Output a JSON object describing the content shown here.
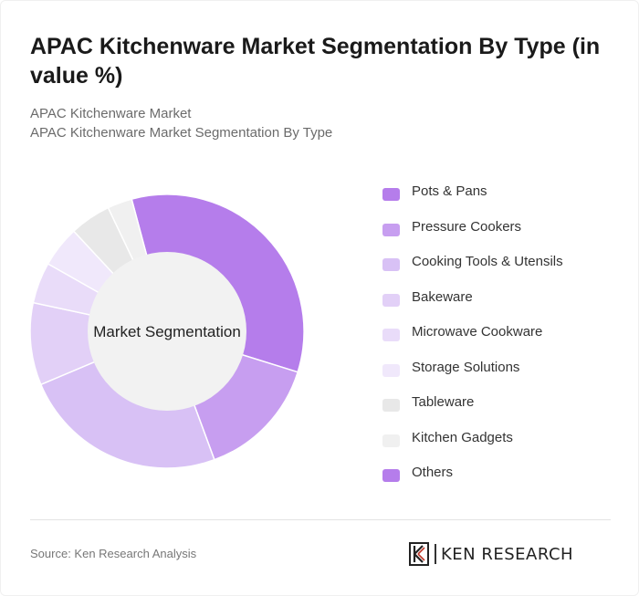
{
  "header": {
    "title": "APAC Kitchenware Market Segmentation By Type (in value %)",
    "subtitle_line1": "APAC Kitchenware Market",
    "subtitle_line2": "APAC Kitchenware Market Segmentation By Type"
  },
  "chart_data": {
    "type": "pie",
    "donut": true,
    "center_label": "Market Segmentation",
    "legend_position": "right",
    "categories": [
      "Pots & Pans",
      "Pressure Cookers",
      "Cooking Tools & Utensils",
      "Bakeware",
      "Microwave Cookware",
      "Storage Solutions",
      "Tableware",
      "Kitchen Gadgets",
      "Others"
    ],
    "values": [
      35,
      15,
      25,
      10,
      5,
      5,
      5,
      3,
      0
    ],
    "colors": [
      "#b57deb",
      "#c79ef0",
      "#d8c1f5",
      "#e2d0f7",
      "#e9dcf9",
      "#f0e8fb",
      "#e8e8e8",
      "#f0f0f0",
      "#b57deb"
    ],
    "start_angle_deg": -15
  },
  "footer": {
    "source": "Source: Ken Research Analysis",
    "logo_text": "KEN RESEARCH"
  }
}
